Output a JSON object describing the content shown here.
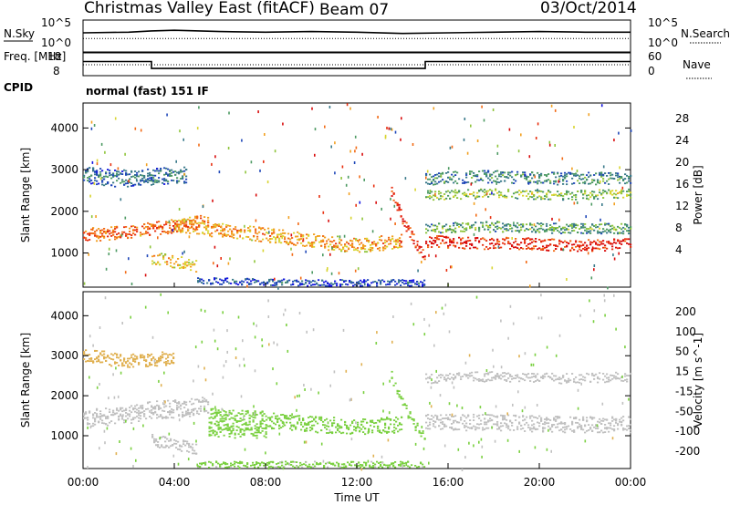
{
  "header": {
    "title": "Christmas Valley East (fitACF)",
    "beam": "Beam 07",
    "date": "03/Oct/2014"
  },
  "colors": {
    "power_scale": [
      "#1515e0",
      "#1f47b8",
      "#3a7a8a",
      "#4c9a62",
      "#8ec43a",
      "#d8d430",
      "#f2a020",
      "#f26a14",
      "#e83010",
      "#d80c0c"
    ],
    "velocity_scale": [
      "#e01010",
      "#f25010",
      "#f59020",
      "#e0b050",
      "#c0c0c0",
      "#c0c0c0",
      "#7ad040",
      "#3aa040",
      "#2e7a6e",
      "#2a4aa8",
      "#1a22c0"
    ]
  },
  "chart_data": [
    {
      "id": "nsky-nsearch",
      "type": "line",
      "y_left_label": "N.Sky",
      "y_right_label": "N.Search",
      "y_left_ticks": [
        "10^5",
        "10^0"
      ],
      "y_right_ticks": [
        "10^5",
        "10^0"
      ],
      "x": [
        0,
        2,
        3,
        4,
        6,
        8,
        10,
        12,
        14,
        16,
        18,
        20,
        22,
        24
      ],
      "series": [
        {
          "values": [
            3.0,
            3.1,
            3.3,
            3.4,
            3.2,
            3.1,
            3.2,
            3.1,
            2.9,
            3.0,
            3.1,
            3.2,
            3.1,
            3.1
          ]
        }
      ]
    },
    {
      "id": "freq-nave",
      "type": "line",
      "y_left_label": "Freq. [MHz]",
      "y_right_label": "Nave",
      "y_left_ticks": [
        18,
        8
      ],
      "y_right_ticks": [
        60,
        0
      ],
      "x": [
        0,
        3.0,
        3.0,
        15.0,
        15.0,
        24
      ],
      "series": [
        {
          "values": [
            14.6,
            14.6,
            10.6,
            10.6,
            14.6,
            14.6
          ]
        }
      ],
      "cpid_label": "CPID",
      "cpid_text": "normal (fast) 151 IF"
    },
    {
      "id": "power",
      "type": "heatmap",
      "ylabel": "Slant Range [km]",
      "yticks": [
        1000,
        2000,
        3000,
        4000
      ],
      "ylim": [
        180,
        4600
      ],
      "colorbar": {
        "label": "Power [dB]",
        "ticks": [
          4,
          8,
          12,
          16,
          20,
          24,
          28
        ],
        "range": [
          0,
          30
        ]
      },
      "bands": [
        {
          "x": [
            0.0,
            1.5,
            3.0,
            4.5,
            5.5
          ],
          "range": [
            1450,
            1500,
            1600,
            1700,
            1800
          ],
          "width": 320,
          "value": 24
        },
        {
          "x": [
            3.0,
            4.0,
            5.0
          ],
          "range": [
            900,
            800,
            700
          ],
          "width": 300,
          "value": 19
        },
        {
          "x": [
            4.0,
            6.0,
            8.0,
            10.0,
            12.0,
            14.0
          ],
          "range": [
            1700,
            1550,
            1450,
            1300,
            1200,
            1300
          ],
          "width": 350,
          "value": 21
        },
        {
          "x": [
            13.5,
            14.0,
            14.5,
            15.0
          ],
          "range": [
            2500,
            1800,
            1300,
            900
          ],
          "width": 250,
          "value": 27
        },
        {
          "x": [
            15.0,
            17.0,
            19.0,
            21.0,
            23.0,
            24.0
          ],
          "range": [
            1300,
            1250,
            1250,
            1200,
            1200,
            1250
          ],
          "width": 280,
          "value": 28
        },
        {
          "x": [
            15.0,
            18.0,
            21.0,
            24.0
          ],
          "range": [
            1600,
            1650,
            1600,
            1600
          ],
          "width": 250,
          "value": 12
        },
        {
          "x": [
            15.0,
            18.0,
            21.0,
            24.0
          ],
          "range": [
            2400,
            2450,
            2400,
            2450
          ],
          "width": 220,
          "value": 15
        },
        {
          "x": [
            15.0,
            18.0,
            21.0,
            24.0
          ],
          "range": [
            2800,
            2850,
            2800,
            2800
          ],
          "width": 300,
          "value": 10
        },
        {
          "x": [
            0.0,
            1.5,
            3.0,
            4.5
          ],
          "range": [
            2900,
            2800,
            2850,
            2900
          ],
          "width": 400,
          "value": 8
        },
        {
          "x": [
            5.0,
            10.0,
            15.0
          ],
          "range": [
            350,
            300,
            300
          ],
          "width": 150,
          "value": 6
        }
      ]
    },
    {
      "id": "velocity",
      "type": "heatmap",
      "ylabel": "Slant Range [km]",
      "yticks": [
        1000,
        2000,
        3000,
        4000
      ],
      "ylim": [
        180,
        4600
      ],
      "xlabel": "Time UT",
      "xticks": [
        "00:00",
        "04:00",
        "08:00",
        "12:00",
        "16:00",
        "20:00",
        "00:00"
      ],
      "xtick_hours": [
        0,
        4,
        8,
        12,
        16,
        20,
        24
      ],
      "xlim": [
        0,
        24
      ],
      "colorbar": {
        "label": "Velocity [m s^-1]",
        "ticks": [
          200,
          100,
          50,
          15,
          -15,
          -50,
          -100,
          -200
        ]
      },
      "bands": [
        {
          "x": [
            0.0,
            1.5,
            3.0,
            4.5,
            5.5
          ],
          "range": [
            1450,
            1500,
            1650,
            1700,
            1800
          ],
          "width": 450,
          "value": 0
        },
        {
          "x": [
            3.0,
            4.0,
            5.0
          ],
          "range": [
            900,
            800,
            700
          ],
          "width": 300,
          "value": 0
        },
        {
          "x": [
            5.5,
            7.0,
            8.0
          ],
          "range": [
            1350,
            1300,
            1300
          ],
          "width": 700,
          "value": 40
        },
        {
          "x": [
            8.0,
            10.0,
            12.0,
            14.0
          ],
          "range": [
            1400,
            1300,
            1250,
            1300
          ],
          "width": 400,
          "value": 30
        },
        {
          "x": [
            13.5,
            14.0,
            14.5,
            15.0
          ],
          "range": [
            2500,
            1800,
            1300,
            900
          ],
          "width": 250,
          "value": 35
        },
        {
          "x": [
            15.0,
            18.0,
            21.0,
            24.0
          ],
          "range": [
            1350,
            1350,
            1300,
            1300
          ],
          "width": 400,
          "value": 0
        },
        {
          "x": [
            15.0,
            18.0,
            21.0,
            24.0
          ],
          "range": [
            2450,
            2500,
            2450,
            2500
          ],
          "width": 250,
          "value": 0
        },
        {
          "x": [
            0.0,
            2.0,
            4.0
          ],
          "range": [
            3000,
            2900,
            2950
          ],
          "width": 350,
          "value": -30
        },
        {
          "x": [
            5.0,
            10.0,
            15.0
          ],
          "range": [
            300,
            300,
            300
          ],
          "width": 150,
          "value": 20
        }
      ]
    }
  ]
}
